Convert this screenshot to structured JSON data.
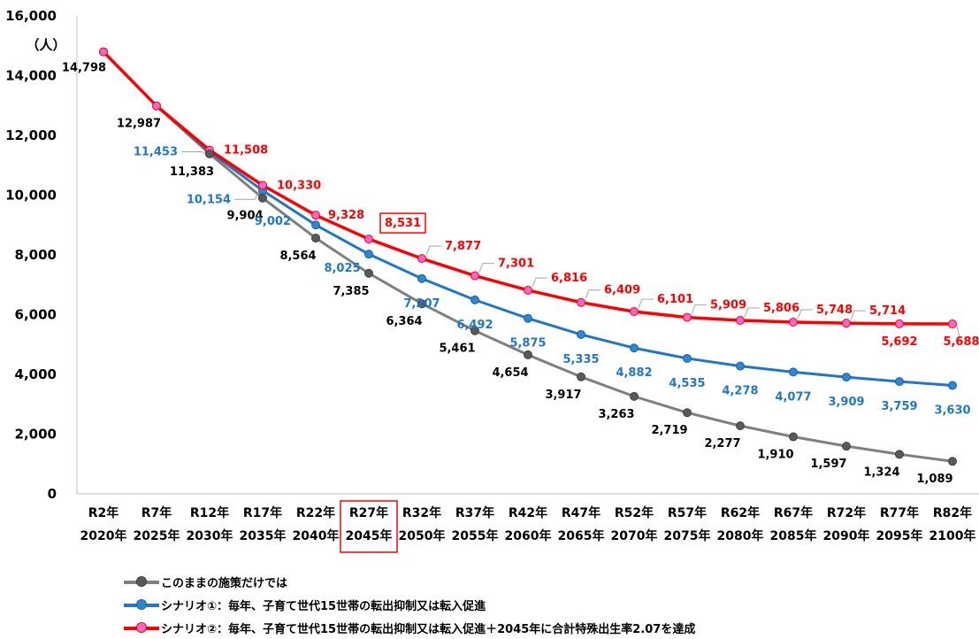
{
  "chart_data": {
    "type": "line",
    "unit_label": "（人）",
    "ylim": [
      0,
      16000
    ],
    "yticks": [
      0,
      2000,
      4000,
      6000,
      8000,
      10000,
      12000,
      14000,
      16000
    ],
    "ytick_labels": [
      "0",
      "2,000",
      "4,000",
      "6,000",
      "8,000",
      "10,000",
      "12,000",
      "14,000",
      "16,000"
    ],
    "categories": [
      {
        "era": "R2年",
        "year": "2020年"
      },
      {
        "era": "R7年",
        "year": "2025年"
      },
      {
        "era": "R12年",
        "year": "2030年"
      },
      {
        "era": "R17年",
        "year": "2035年"
      },
      {
        "era": "R22年",
        "year": "2040年"
      },
      {
        "era": "R27年",
        "year": "2045年"
      },
      {
        "era": "R32年",
        "year": "2050年"
      },
      {
        "era": "R37年",
        "year": "2055年"
      },
      {
        "era": "R42年",
        "year": "2060年"
      },
      {
        "era": "R47年",
        "year": "2065年"
      },
      {
        "era": "R52年",
        "year": "2070年"
      },
      {
        "era": "R57年",
        "year": "2075年"
      },
      {
        "era": "R62年",
        "year": "2080年"
      },
      {
        "era": "R67年",
        "year": "2085年"
      },
      {
        "era": "R72年",
        "year": "2090年"
      },
      {
        "era": "R77年",
        "year": "2095年"
      },
      {
        "era": "R82年",
        "year": "2100年"
      }
    ],
    "highlighted_category_index": 5,
    "highlighted_value": {
      "series_index": 2,
      "category_index": 5
    },
    "grid": false,
    "legend_position": "bottom-left",
    "series": [
      {
        "name": "このままの施策だけでは",
        "color": "#7f7f7f",
        "marker_color": "#595959",
        "label_color": "#000000",
        "values": [
          14798,
          12987,
          11383,
          9904,
          8564,
          7385,
          6364,
          5461,
          4654,
          3917,
          3263,
          2719,
          2277,
          1910,
          1597,
          1324,
          1089
        ],
        "labels": [
          "14,798",
          "12,987",
          "11,383",
          "9,904",
          "8,564",
          "7,385",
          "6,364",
          "5,461",
          "4,654",
          "3,917",
          "3,263",
          "2,719",
          "2,277",
          "1,910",
          "1,597",
          "1,324",
          "1,089"
        ]
      },
      {
        "name": "シナリオ①：毎年、子育て世代15世帯の転出抑制又は転入促進",
        "color": "#1f77c9",
        "marker_color": "#2e86d6",
        "label_color": "#1f77c9",
        "values": [
          14798,
          12987,
          11453,
          10154,
          9002,
          8025,
          7207,
          6492,
          5875,
          5335,
          4882,
          4535,
          4278,
          4077,
          3909,
          3759,
          3630
        ],
        "labels": [
          null,
          null,
          "11,453",
          "10,154",
          "9,002",
          "8,025",
          "7,207",
          "6,492",
          "5,875",
          "5,335",
          "4,882",
          "4,535",
          "4,278",
          "4,077",
          "3,909",
          "3,759",
          "3,630"
        ]
      },
      {
        "name": "シナリオ②：毎年、子育て世代15世帯の転出抑制又は転入促進＋2045年に合計特殊出生率2.07を達成",
        "color": "#ff0000",
        "marker_color": "#ff66cc",
        "label_color": "#ff0000",
        "values": [
          14798,
          12987,
          11508,
          10330,
          9328,
          8531,
          7877,
          7301,
          6816,
          6409,
          6101,
          5909,
          5806,
          5748,
          5714,
          5692,
          5688
        ],
        "labels": [
          null,
          null,
          "11,508",
          "10,330",
          "9,328",
          "8,531",
          "7,877",
          "7,301",
          "6,816",
          "6,409",
          "6,101",
          "5,909",
          "5,806",
          "5,748",
          "5,714",
          "5,692",
          "5,688"
        ]
      }
    ]
  }
}
